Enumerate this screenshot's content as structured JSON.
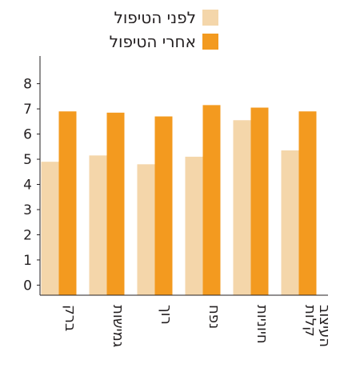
{
  "chart_data": {
    "type": "bar",
    "categories": [
      "ברק",
      "גמישות",
      "רוך",
      "נפח",
      "חיוניות",
      "קלות העיצוב"
    ],
    "series": [
      {
        "name": "לפני הטיפול",
        "values": [
          4.9,
          5.15,
          4.8,
          5.1,
          6.55,
          5.35
        ],
        "color": "#f4d6aa"
      },
      {
        "name": "אחרי הטיפול",
        "values": [
          6.9,
          6.85,
          6.7,
          7.15,
          7.05,
          6.9
        ],
        "color": "#f39a1f"
      }
    ],
    "ylim": [
      -0.4,
      9.1
    ],
    "yticks": [
      "0",
      "1",
      "2",
      "3",
      "4",
      "5",
      "6",
      "7",
      "8"
    ],
    "legend_position": "top",
    "grid": false,
    "axis_color": "#231f20"
  }
}
